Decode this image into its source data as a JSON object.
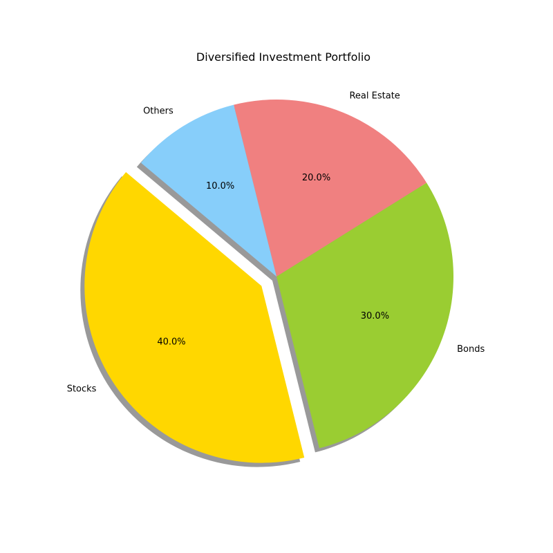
{
  "chart_data": {
    "type": "pie",
    "title": "Diversified Investment Portfolio",
    "categories": [
      "Stocks",
      "Bonds",
      "Real Estate",
      "Others"
    ],
    "values": [
      40,
      30,
      20,
      10
    ],
    "percent_labels": [
      "40.0%",
      "30.0%",
      "20.0%",
      "10.0%"
    ],
    "colors": [
      "#ffd700",
      "#9acd32",
      "#f08080",
      "#87cefa"
    ],
    "explode": [
      0.1,
      0,
      0,
      0
    ],
    "start_angle_deg": 140,
    "shadow": true,
    "legend": "none"
  }
}
